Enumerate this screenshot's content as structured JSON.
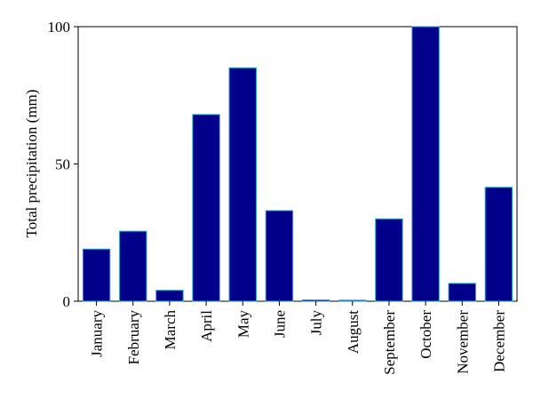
{
  "chart_data": {
    "type": "bar",
    "title": "",
    "xlabel": "",
    "ylabel": "Total precipitation (mm)",
    "ylim": [
      0,
      100
    ],
    "yticks": [
      0,
      50,
      100
    ],
    "grid": false,
    "categories": [
      "January",
      "February",
      "March",
      "April",
      "May",
      "June",
      "July",
      "August",
      "September",
      "October",
      "November",
      "December"
    ],
    "values": [
      19,
      25.5,
      4,
      68,
      85,
      33,
      0.5,
      0.4,
      30,
      100,
      6.5,
      41.5
    ],
    "bar_color": "#00008b",
    "bar_edge_color": "#2aa7c9"
  }
}
